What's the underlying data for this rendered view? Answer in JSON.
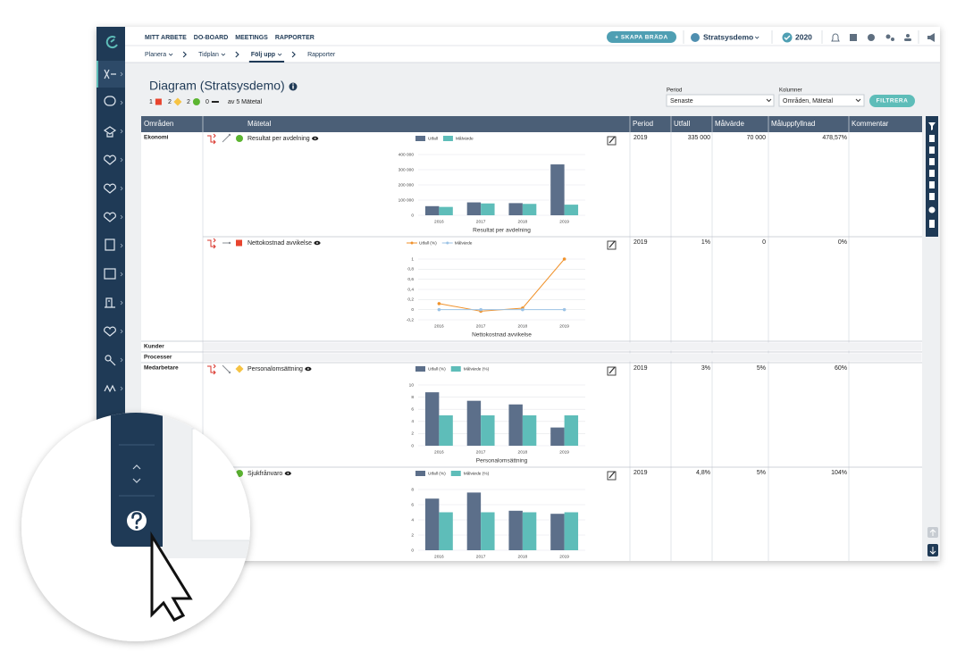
{
  "nav": {
    "top": [
      "MITT ARBETE",
      "DO-BOARD",
      "MEETINGS",
      "RAPPORTER"
    ],
    "sub": [
      {
        "label": "Planera",
        "dropdown": true
      },
      {
        "label": "Tidplan",
        "dropdown": true
      },
      {
        "label": "Följ upp",
        "dropdown": true,
        "active": true
      },
      {
        "label": "Rapporter"
      }
    ],
    "create_button": "+ SKAPA BRÄDA",
    "organisation": "Stratsysdemo",
    "year": "2020"
  },
  "header": {
    "title": "Diagram (Stratsysdemo)",
    "status": [
      {
        "count": 1,
        "shape": "square",
        "color": "#e8442e"
      },
      {
        "count": 2,
        "shape": "diamond",
        "color": "#f6c343"
      },
      {
        "count": 2,
        "shape": "circle",
        "color": "#5cb531"
      },
      {
        "count": 0,
        "shape": "dash",
        "color": "#222222"
      }
    ],
    "of_text": "av 5 Mätetal"
  },
  "filters": {
    "period_label": "Period",
    "period_value": "Senaste",
    "columns_label": "Kolumner",
    "columns_value": "Områden, Mätetal",
    "button": "FILTRERA"
  },
  "table": {
    "columns": [
      "Områden",
      "Mätetal",
      "Period",
      "Utfall",
      "Målvärde",
      "Måluppfyllnad",
      "Kommentar"
    ],
    "groups": [
      {
        "area": "Ekonomi",
        "rows": [
          {
            "name": "Resultat per avdelning",
            "trend": "up",
            "status_color": "#5cb531",
            "status_shape": "circle",
            "period": "2019",
            "utfall": "335 000",
            "malvarde": "70 000",
            "maluppfyllnad": "478,57%",
            "chart": {
              "type": "bar",
              "title": "Resultat per avdelning",
              "categories": [
                "2016",
                "2017",
                "2018",
                "2019"
              ],
              "series": [
                {
                  "name": "Utfall",
                  "color": "#5c6f8a",
                  "values": [
                    60000,
                    85000,
                    80000,
                    335000
                  ]
                },
                {
                  "name": "Målvärde",
                  "color": "#5ebdb9",
                  "values": [
                    55000,
                    78000,
                    75000,
                    70000
                  ]
                }
              ],
              "ylim": [
                0,
                400000
              ],
              "yticks": [
                0,
                {
                  "value": 100000,
                  "label": "100 000"
                },
                {
                  "value": 200000,
                  "label": "200 000"
                },
                {
                  "value": 300000,
                  "label": "300 000"
                },
                {
                  "value": 400000,
                  "label": "400 000"
                }
              ]
            }
          },
          {
            "name": "Nettokostnad avvikelse",
            "trend": "flat",
            "status_color": "#e8442e",
            "status_shape": "square",
            "period": "2019",
            "utfall": "1%",
            "malvarde": "0",
            "maluppfyllnad": "0%",
            "chart": {
              "type": "line",
              "title": "Nettokostnad avvikelse",
              "categories": [
                "2016",
                "2017",
                "2018",
                "2019"
              ],
              "series": [
                {
                  "name": "Utfall (%)",
                  "color": "#f0922b",
                  "values": [
                    0.12,
                    -0.03,
                    0.03,
                    1
                  ]
                },
                {
                  "name": "Målvärde",
                  "color": "#9cc3e6",
                  "values": [
                    0,
                    0,
                    0,
                    0
                  ]
                }
              ],
              "ylim": [
                -0.2,
                1
              ],
              "yticks": [
                {
                  "value": -0.2,
                  "label": "-0,2"
                },
                0,
                {
                  "value": 0.2,
                  "label": "0,2"
                },
                {
                  "value": 0.4,
                  "label": "0,4"
                },
                {
                  "value": 0.6,
                  "label": "0,6"
                },
                {
                  "value": 0.8,
                  "label": "0,8"
                },
                1
              ]
            }
          }
        ]
      },
      {
        "area": "Kunder"
      },
      {
        "area": "Processer"
      },
      {
        "area": "Medarbetare",
        "rows": [
          {
            "name": "Personalomsättning",
            "trend": "down",
            "status_color": "#f6c343",
            "status_shape": "diamond",
            "period": "2019",
            "utfall": "3%",
            "malvarde": "5%",
            "maluppfyllnad": "60%",
            "chart": {
              "type": "bar",
              "title": "Personalomsättning",
              "categories": [
                "2016",
                "2017",
                "2018",
                "2019"
              ],
              "series": [
                {
                  "name": "Utfall (%)",
                  "color": "#5c6f8a",
                  "values": [
                    8.8,
                    7.4,
                    6.8,
                    3
                  ]
                },
                {
                  "name": "Målvärde (%)",
                  "color": "#5ebdb9",
                  "values": [
                    5,
                    5,
                    5,
                    5
                  ]
                }
              ],
              "ylim": [
                0,
                10
              ],
              "yticks": [
                0,
                2,
                4,
                6,
                8,
                10
              ]
            }
          },
          {
            "name": "Sjukfrånvaro",
            "status_color": "#5cb531",
            "status_shape": "circle",
            "period": "2019",
            "utfall": "4,8%",
            "malvarde": "5%",
            "maluppfyllnad": "104%",
            "chart": {
              "type": "bar",
              "categories": [
                "2016",
                "2017",
                "2018",
                "2019"
              ],
              "series": [
                {
                  "name": "Utfall (%)",
                  "color": "#5c6f8a",
                  "values": [
                    6.8,
                    7.6,
                    5.2,
                    4.8
                  ]
                },
                {
                  "name": "Målvärde (%)",
                  "color": "#5ebdb9",
                  "values": [
                    5,
                    5,
                    5,
                    5
                  ]
                }
              ],
              "ylim": [
                0,
                8
              ],
              "yticks": [
                0,
                2,
                4,
                6,
                8
              ]
            }
          }
        ]
      }
    ]
  }
}
